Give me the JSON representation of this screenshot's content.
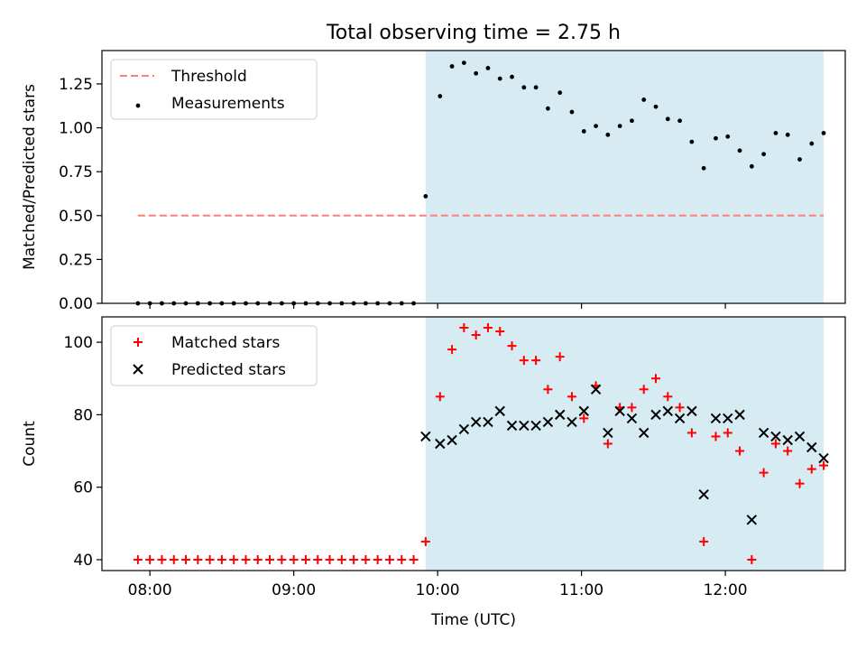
{
  "title": "Total observing time = 2.75 h",
  "chart_data": [
    {
      "type": "scatter",
      "ylabel": "Matched/Predicted stars",
      "ylim": [
        0,
        1.44
      ],
      "yticks": [
        0,
        0.25,
        0.5,
        0.75,
        1.0,
        1.25
      ],
      "ytick_labels": [
        "0.00",
        "0.25",
        "0.50",
        "0.75",
        "1.00",
        "1.25"
      ],
      "grid": false,
      "legend": "top-left",
      "shaded_interval": [
        "09:55",
        "12:41"
      ],
      "threshold": {
        "name": "Threshold",
        "value": 0.5,
        "x_range": [
          "07:55",
          "12:41"
        ],
        "color": "#ff7f7f"
      },
      "series": [
        {
          "name": "Measurements",
          "color": "#000000",
          "x": [
            "07:55",
            "08:00",
            "08:05",
            "08:10",
            "08:15",
            "08:20",
            "08:25",
            "08:30",
            "08:35",
            "08:40",
            "08:45",
            "08:50",
            "08:55",
            "09:00",
            "09:05",
            "09:10",
            "09:15",
            "09:20",
            "09:25",
            "09:30",
            "09:35",
            "09:40",
            "09:45",
            "09:50",
            "09:55",
            "10:01",
            "10:06",
            "10:11",
            "10:16",
            "10:21",
            "10:26",
            "10:31",
            "10:36",
            "10:41",
            "10:46",
            "10:51",
            "10:56",
            "11:01",
            "11:06",
            "11:11",
            "11:16",
            "11:21",
            "11:26",
            "11:31",
            "11:36",
            "11:41",
            "11:46",
            "11:51",
            "11:56",
            "12:01",
            "12:06",
            "12:11",
            "12:16",
            "12:21",
            "12:26",
            "12:31",
            "12:36",
            "12:41"
          ],
          "y": [
            0,
            0,
            0,
            0,
            0,
            0,
            0,
            0,
            0,
            0,
            0,
            0,
            0,
            0,
            0,
            0,
            0,
            0,
            0,
            0,
            0,
            0,
            0,
            0,
            0.61,
            1.18,
            1.35,
            1.37,
            1.31,
            1.34,
            1.28,
            1.29,
            1.23,
            1.23,
            1.11,
            1.2,
            1.09,
            0.98,
            1.01,
            0.96,
            1.01,
            1.04,
            1.16,
            1.12,
            1.05,
            1.04,
            0.92,
            0.77,
            0.94,
            0.95,
            0.87,
            0.78,
            0.85,
            0.97,
            0.96,
            0.82,
            0.91,
            0.97
          ]
        }
      ]
    },
    {
      "type": "scatter",
      "xlabel": "Time (UTC)",
      "ylabel": "Count",
      "xlim": [
        "07:40",
        "12:50"
      ],
      "xticks": [
        "08:00",
        "09:00",
        "10:00",
        "11:00",
        "12:00"
      ],
      "ylim": [
        37,
        107
      ],
      "yticks": [
        40,
        60,
        80,
        100
      ],
      "grid": false,
      "legend": "top-left",
      "shaded_interval": [
        "09:55",
        "12:41"
      ],
      "series": [
        {
          "name": "Matched stars",
          "marker": "+",
          "color": "#ff0000",
          "x": [
            "07:55",
            "08:00",
            "08:05",
            "08:10",
            "08:15",
            "08:20",
            "08:25",
            "08:30",
            "08:35",
            "08:40",
            "08:45",
            "08:50",
            "08:55",
            "09:00",
            "09:05",
            "09:10",
            "09:15",
            "09:20",
            "09:25",
            "09:30",
            "09:35",
            "09:40",
            "09:45",
            "09:50",
            "09:55",
            "10:01",
            "10:06",
            "10:11",
            "10:16",
            "10:21",
            "10:26",
            "10:31",
            "10:36",
            "10:41",
            "10:46",
            "10:51",
            "10:56",
            "11:01",
            "11:06",
            "11:11",
            "11:16",
            "11:21",
            "11:26",
            "11:31",
            "11:36",
            "11:41",
            "11:46",
            "11:51",
            "11:56",
            "12:01",
            "12:06",
            "12:11",
            "12:16",
            "12:21",
            "12:26",
            "12:31",
            "12:36",
            "12:41"
          ],
          "y": [
            40,
            40,
            40,
            40,
            40,
            40,
            40,
            40,
            40,
            40,
            40,
            40,
            40,
            40,
            40,
            40,
            40,
            40,
            40,
            40,
            40,
            40,
            40,
            40,
            45,
            85,
            98,
            104,
            102,
            104,
            103,
            99,
            95,
            95,
            87,
            96,
            85,
            79,
            88,
            72,
            82,
            82,
            87,
            90,
            85,
            82,
            75,
            45,
            74,
            75,
            70,
            40,
            64,
            72,
            70,
            61,
            65,
            66
          ]
        },
        {
          "name": "Predicted stars",
          "marker": "x",
          "color": "#000000",
          "x": [
            "09:55",
            "10:01",
            "10:06",
            "10:11",
            "10:16",
            "10:21",
            "10:26",
            "10:31",
            "10:36",
            "10:41",
            "10:46",
            "10:51",
            "10:56",
            "11:01",
            "11:06",
            "11:11",
            "11:16",
            "11:21",
            "11:26",
            "11:31",
            "11:36",
            "11:41",
            "11:46",
            "11:51",
            "11:56",
            "12:01",
            "12:06",
            "12:11",
            "12:16",
            "12:21",
            "12:26",
            "12:31",
            "12:36",
            "12:41"
          ],
          "y": [
            74,
            72,
            73,
            76,
            78,
            78,
            81,
            77,
            77,
            77,
            78,
            80,
            78,
            81,
            87,
            75,
            81,
            79,
            75,
            80,
            81,
            79,
            81,
            58,
            79,
            79,
            80,
            51,
            75,
            74,
            73,
            74,
            71,
            68
          ]
        }
      ]
    }
  ]
}
